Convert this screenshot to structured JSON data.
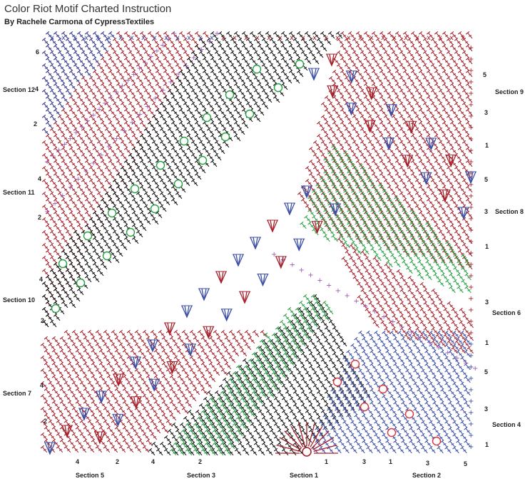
{
  "header": {
    "title": "Color Riot Motif Charted Instruction",
    "byline": "By Rachele Carmona of CypressTextiles"
  },
  "sections": {
    "s1": "Section 1",
    "s2": "Section 2",
    "s3": "Section 3",
    "s4": "Section 4",
    "s5": "Section 5",
    "s6": "Section 6",
    "s7": "Section 7",
    "s8": "Section 8",
    "s9": "Section 9",
    "s10": "Section 10",
    "s11": "Section 11",
    "s12": "Section 12"
  },
  "row_numbers": {
    "bottom": [
      "4",
      "2",
      "4",
      "2",
      "1",
      "3",
      "1",
      "3",
      "5"
    ],
    "right": [
      "5",
      "3",
      "1",
      "5",
      "3",
      "1",
      "3",
      "1",
      "5",
      "3",
      "1"
    ],
    "left": [
      "6",
      "4",
      "2",
      "4",
      "2",
      "4",
      "2",
      "4",
      "2"
    ]
  },
  "colors": {
    "blue": "#3b4fa6",
    "red": "#a5202a",
    "black": "#111111",
    "green": "#27a045",
    "purple": "#9b59b6",
    "bright_red": "#d9363e"
  },
  "icons": {
    "dc_stitch": "dc-stitch-icon",
    "chain_ring": "chain-ring-icon",
    "v_cluster": "v-cluster-icon",
    "picot": "picot-icon"
  }
}
